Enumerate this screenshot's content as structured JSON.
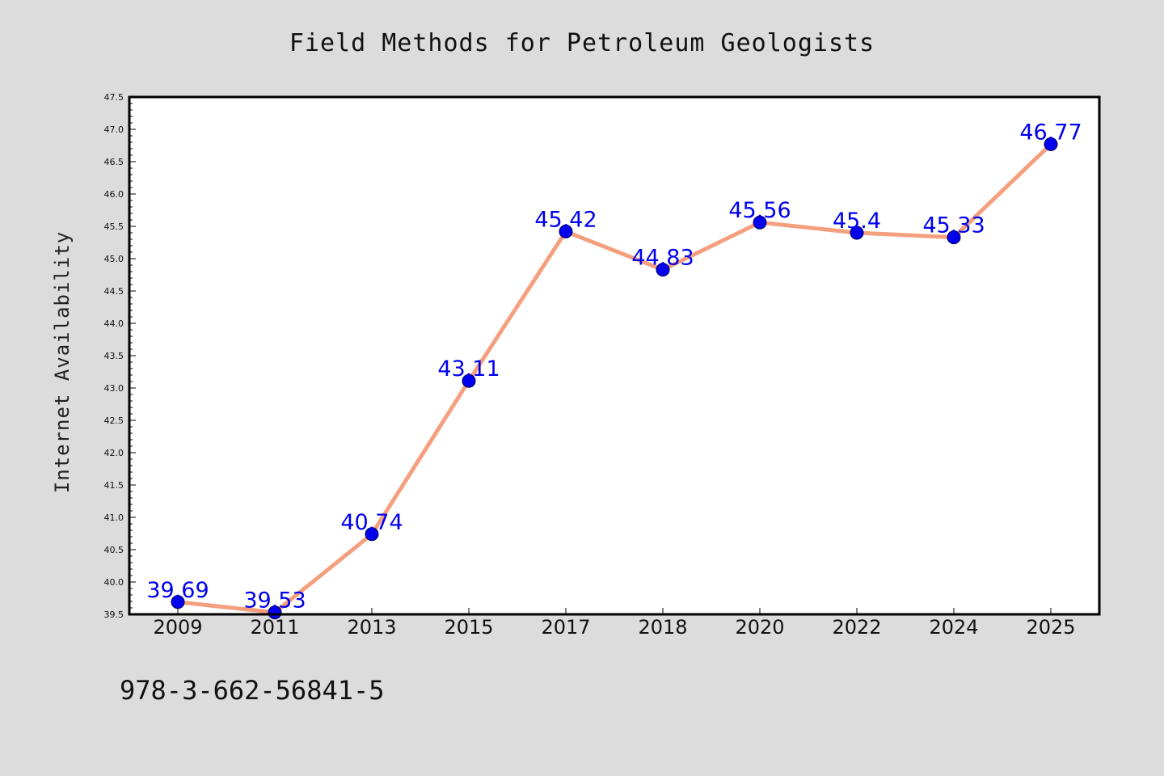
{
  "colors": {
    "background": "#dcdcdc",
    "plot_background": "#ffffff",
    "line": "#f4a07e",
    "marker": "#0000ee",
    "data_label": "#0000ee",
    "axis": "#000000"
  },
  "footnote": "978-3-662-56841-5",
  "chart_data": {
    "type": "line",
    "title": "Field Methods for Petroleum Geologists",
    "xlabel": "",
    "ylabel": "Internet Availability",
    "categories": [
      "2009",
      "2011",
      "2013",
      "2015",
      "2017",
      "2018",
      "2020",
      "2022",
      "2024",
      "2025"
    ],
    "series": [
      {
        "values": [
          39.69,
          39.53,
          40.74,
          43.11,
          45.42,
          44.83,
          45.56,
          45.4,
          45.33,
          46.77
        ],
        "labels": [
          "39.69",
          "39.53",
          "40.74",
          "43.11",
          "45.42",
          "44.83",
          "45.56",
          "45.4",
          "45.33",
          "46.77"
        ]
      }
    ],
    "ylim": [
      39.5,
      47.5
    ],
    "yticks": [
      "39.5",
      "40.0",
      "40.5",
      "41.0",
      "41.5",
      "42.0",
      "42.5",
      "43.0",
      "43.5",
      "44.0",
      "44.5",
      "45.0",
      "45.5",
      "46.0",
      "46.5",
      "47.0",
      "47.5"
    ],
    "grid": false,
    "legend": "none"
  }
}
